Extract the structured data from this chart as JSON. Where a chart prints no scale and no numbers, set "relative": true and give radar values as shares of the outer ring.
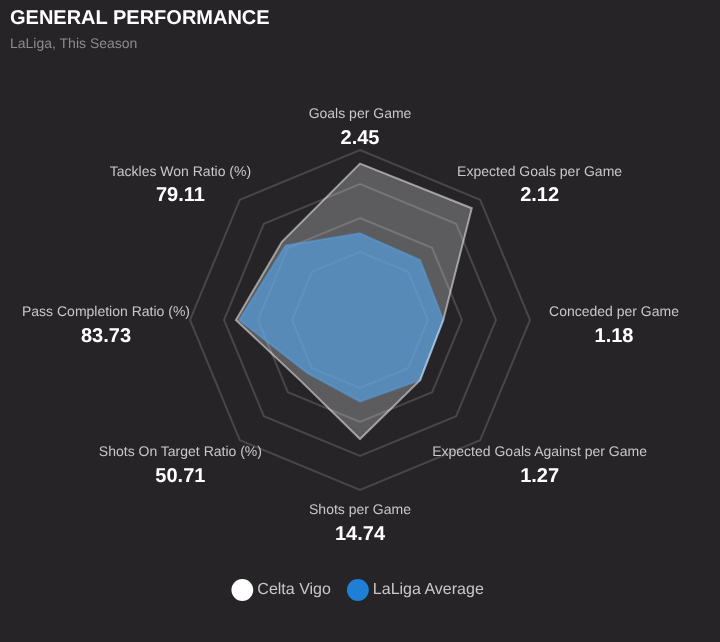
{
  "chart_data": {
    "type": "radar",
    "title": "GENERAL PERFORMANCE",
    "subtitle": "LaLiga, This Season",
    "relative": true,
    "categories": [
      "Goals per Game",
      "Expected Goals per Game",
      "Conceded per Game",
      "Expected Goals Against per Game",
      "Shots per Game",
      "Shots On Target Ratio (%)",
      "Pass Completion Ratio (%)",
      "Tackles Won Ratio (%)"
    ],
    "series": [
      {
        "name": "Celta Vigo",
        "color": "#ffffff",
        "values": [
          0.92,
          0.93,
          0.49,
          0.5,
          0.7,
          0.5,
          0.73,
          0.65
        ]
      },
      {
        "name": "LaLiga Average",
        "color": "#1f7fd6",
        "values": [
          0.51,
          0.5,
          0.49,
          0.5,
          0.48,
          0.44,
          0.71,
          0.62
        ]
      }
    ],
    "annotations": [
      "2.45",
      "2.12",
      "1.18",
      "1.27",
      "14.74",
      "50.71",
      "83.73",
      "79.11"
    ],
    "grid": true,
    "legend": "bottom",
    "marker": "none"
  }
}
